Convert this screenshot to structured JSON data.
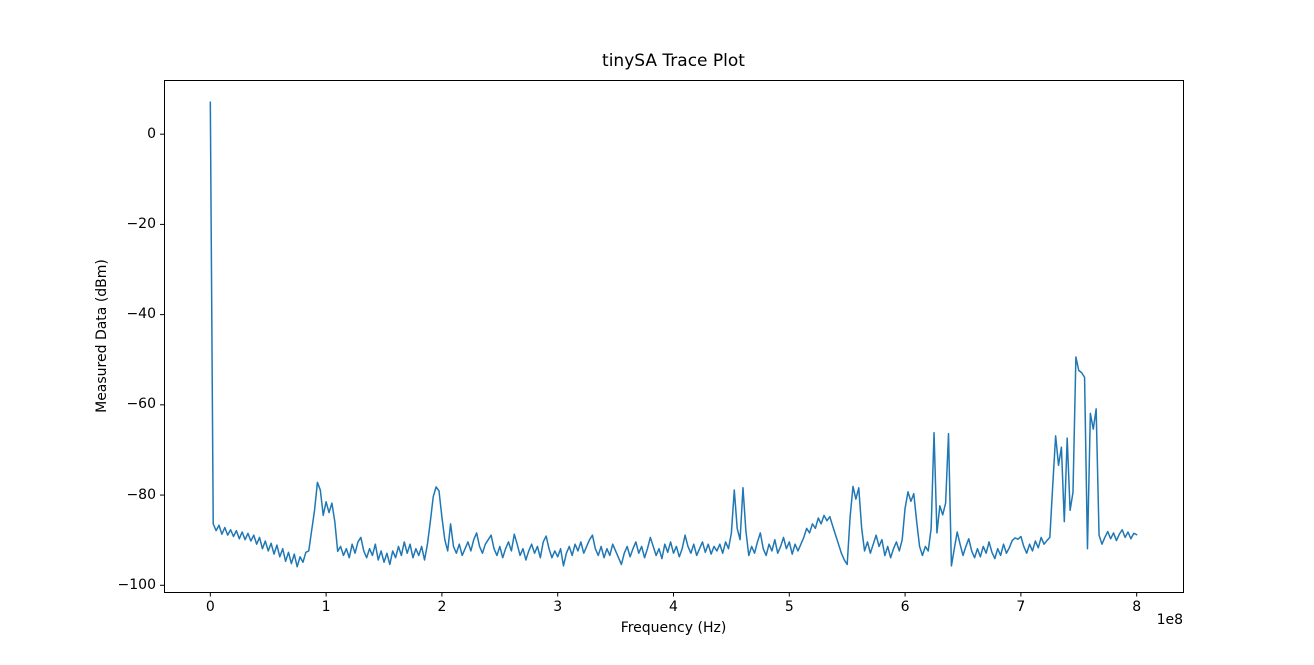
{
  "chart_data": {
    "type": "line",
    "title": "tinySA Trace Plot",
    "xlabel": "Frequency (Hz)",
    "ylabel": "Measured Data (dBm)",
    "x_offset_label": "1e8",
    "legend": "none",
    "grid": false,
    "line_color": "#1f77b4",
    "line_width": 1.5,
    "background_color": "#ffffff",
    "axis_color": "#000000",
    "xlim_hz": [
      -40000000,
      840000000
    ],
    "ylim_dbm": [
      -101.6,
      11.9
    ],
    "x_tick_values_hz": [
      0,
      100000000,
      200000000,
      300000000,
      400000000,
      500000000,
      600000000,
      700000000,
      800000000
    ],
    "x_tick_labels": [
      "0",
      "1",
      "2",
      "3",
      "4",
      "5",
      "6",
      "7",
      "8"
    ],
    "y_tick_values_dbm": [
      0,
      -20,
      -40,
      -60,
      -80,
      -100
    ],
    "y_tick_labels": [
      "0",
      "−20",
      "−40",
      "−60",
      "−80",
      "−100"
    ],
    "x_start_hz": 0,
    "x_step_hz": 2500000,
    "values_dbm": [
      7,
      -86.5,
      -88,
      -86.8,
      -88.8,
      -87.3,
      -89,
      -87.8,
      -89.3,
      -88,
      -89.8,
      -88.3,
      -90,
      -88.6,
      -90.3,
      -89,
      -91,
      -89.5,
      -92,
      -90.3,
      -92.5,
      -90.8,
      -93.2,
      -91.2,
      -93.8,
      -92,
      -94.8,
      -92.8,
      -95.3,
      -93.2,
      -96,
      -93.8,
      -95,
      -92.8,
      -92.5,
      -88,
      -83.5,
      -77.3,
      -79,
      -84.6,
      -81.6,
      -84,
      -81.9,
      -86,
      -92.6,
      -91.5,
      -93.5,
      -92,
      -94,
      -91,
      -93,
      -90.5,
      -89.5,
      -92.5,
      -94,
      -92,
      -93.5,
      -91,
      -94.5,
      -92.5,
      -95,
      -93,
      -95.5,
      -92.5,
      -94,
      -91.5,
      -93.5,
      -90.5,
      -93,
      -91,
      -94,
      -92,
      -93.5,
      -91.5,
      -94.5,
      -91,
      -86,
      -80.5,
      -78.3,
      -79.2,
      -85,
      -90,
      -92.5,
      -86.5,
      -91.5,
      -93,
      -91,
      -93.5,
      -92,
      -90.5,
      -92.5,
      -90,
      -88.5,
      -91.5,
      -93,
      -91,
      -90,
      -89,
      -92,
      -93.5,
      -91.5,
      -94,
      -92,
      -90.5,
      -92.5,
      -88.8,
      -91,
      -93.5,
      -92,
      -94.5,
      -92.5,
      -91,
      -93,
      -91.5,
      -94,
      -90.5,
      -89.2,
      -92,
      -94,
      -92.5,
      -93.8,
      -92,
      -95.8,
      -93,
      -91.5,
      -93.5,
      -91,
      -92.5,
      -90.5,
      -93,
      -91.5,
      -90,
      -89,
      -92,
      -93.5,
      -91.5,
      -94,
      -92,
      -93.5,
      -91,
      -92.5,
      -94,
      -95.5,
      -93,
      -91.5,
      -93.8,
      -92,
      -90.5,
      -93,
      -91.5,
      -94,
      -92,
      -89.5,
      -91.5,
      -93.5,
      -92,
      -94.2,
      -91,
      -92.8,
      -90.5,
      -93,
      -91.5,
      -93.8,
      -92,
      -89,
      -91.5,
      -93,
      -91,
      -93.5,
      -92,
      -90.5,
      -92.8,
      -91,
      -93.2,
      -91.5,
      -92.5,
      -91,
      -93,
      -90.5,
      -92,
      -88.5,
      -79,
      -87.5,
      -90,
      -78.5,
      -88,
      -93.5,
      -91.5,
      -93,
      -90.5,
      -88.5,
      -92,
      -93.5,
      -91,
      -92.5,
      -90,
      -93,
      -91.5,
      -89.5,
      -92,
      -90.5,
      -93.2,
      -91,
      -92.5,
      -91,
      -89.5,
      -87.5,
      -88.5,
      -86.5,
      -87.5,
      -85.2,
      -86.5,
      -84.6,
      -85.8,
      -84.9,
      -87,
      -89,
      -91,
      -93,
      -94.5,
      -95.5,
      -85,
      -78.2,
      -81,
      -78.5,
      -87.5,
      -92.5,
      -90.5,
      -93,
      -91,
      -89,
      -91.5,
      -90,
      -93.5,
      -91.5,
      -94,
      -92,
      -90.5,
      -92.5,
      -90,
      -83,
      -79.4,
      -81.5,
      -79.8,
      -86,
      -91.5,
      -93.5,
      -91.5,
      -92.5,
      -87.5,
      -66.3,
      -88.5,
      -82.5,
      -84.5,
      -81.9,
      -66.5,
      -95.8,
      -92,
      -88.3,
      -91,
      -93.5,
      -91.5,
      -89.8,
      -92.5,
      -94,
      -92,
      -93.8,
      -91.5,
      -93,
      -90.5,
      -92.8,
      -94.2,
      -92,
      -93.5,
      -91,
      -93,
      -91.8,
      -90.2,
      -89.6,
      -89.9,
      -89.3,
      -91.5,
      -93,
      -91,
      -92.5,
      -90.3,
      -91.8,
      -89.5,
      -91,
      -90.2,
      -89.5,
      -78,
      -67,
      -73.5,
      -69.5,
      -86,
      -67.5,
      -83.5,
      -79.5,
      -49.5,
      -52.5,
      -53,
      -54,
      -92,
      -62,
      -65.5,
      -61,
      -89,
      -91,
      -89.5,
      -88.2,
      -89.8,
      -88.5,
      -90.2,
      -88.8,
      -87.8,
      -89.5,
      -88.3,
      -89.8,
      -88.6,
      -88.9
    ]
  }
}
